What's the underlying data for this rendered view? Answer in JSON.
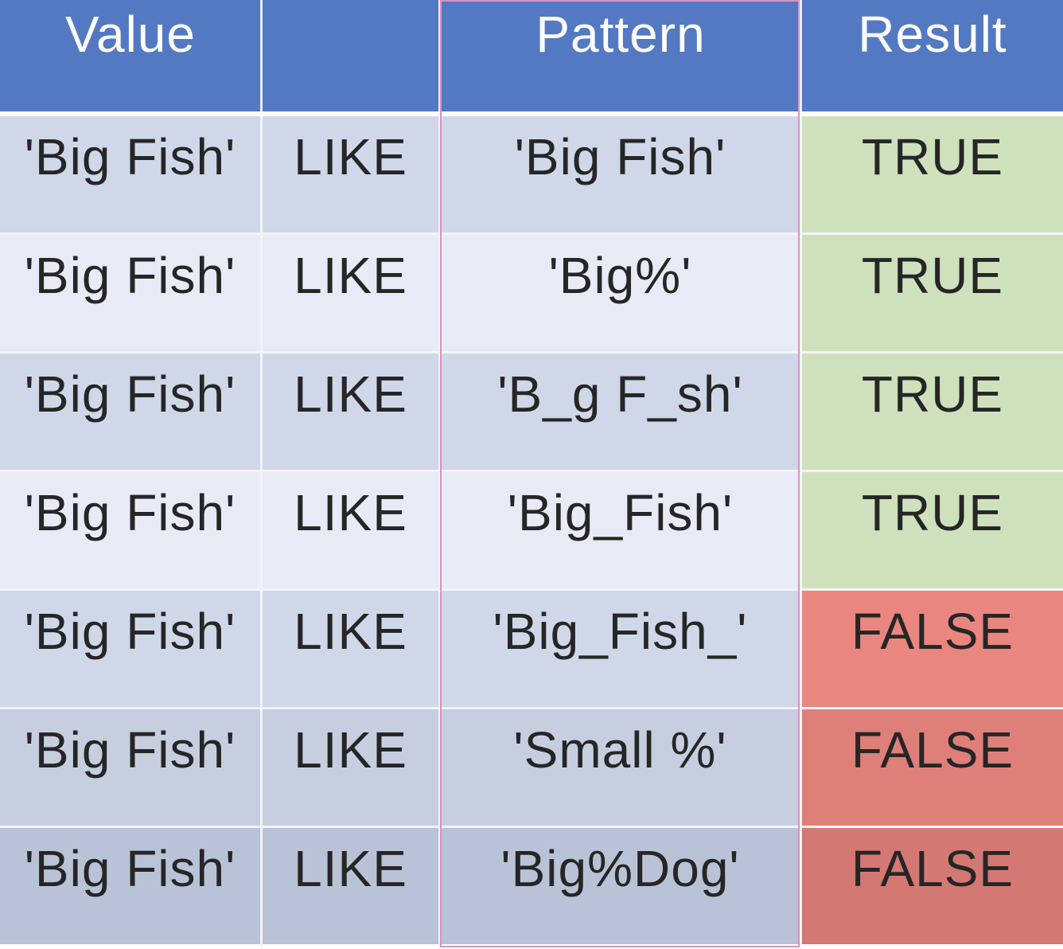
{
  "table": {
    "headers": [
      "Value",
      "",
      "Pattern",
      "Result"
    ],
    "rows": [
      {
        "value": "'Big Fish'",
        "op": "LIKE",
        "pattern": "'Big Fish'",
        "result": "TRUE"
      },
      {
        "value": "'Big Fish'",
        "op": "LIKE",
        "pattern": "'Big%'",
        "result": "TRUE"
      },
      {
        "value": "'Big Fish'",
        "op": "LIKE",
        "pattern": "'B_g F_sh'",
        "result": "TRUE"
      },
      {
        "value": "'Big Fish'",
        "op": "LIKE",
        "pattern": "'Big_Fish'",
        "result": "TRUE"
      },
      {
        "value": "'Big Fish'",
        "op": "LIKE",
        "pattern": "'Big_Fish_'",
        "result": "FALSE"
      },
      {
        "value": "'Big Fish'",
        "op": "LIKE",
        "pattern": "'Small %'",
        "result": "FALSE"
      },
      {
        "value": "'Big Fish'",
        "op": "LIKE",
        "pattern": "'Big%Dog'",
        "result": "FALSE"
      }
    ]
  },
  "colors": {
    "header": "#5479c3",
    "true_result": "#cfe1bc",
    "false_result": "#ea8680",
    "pattern_border": "#d493c4"
  }
}
